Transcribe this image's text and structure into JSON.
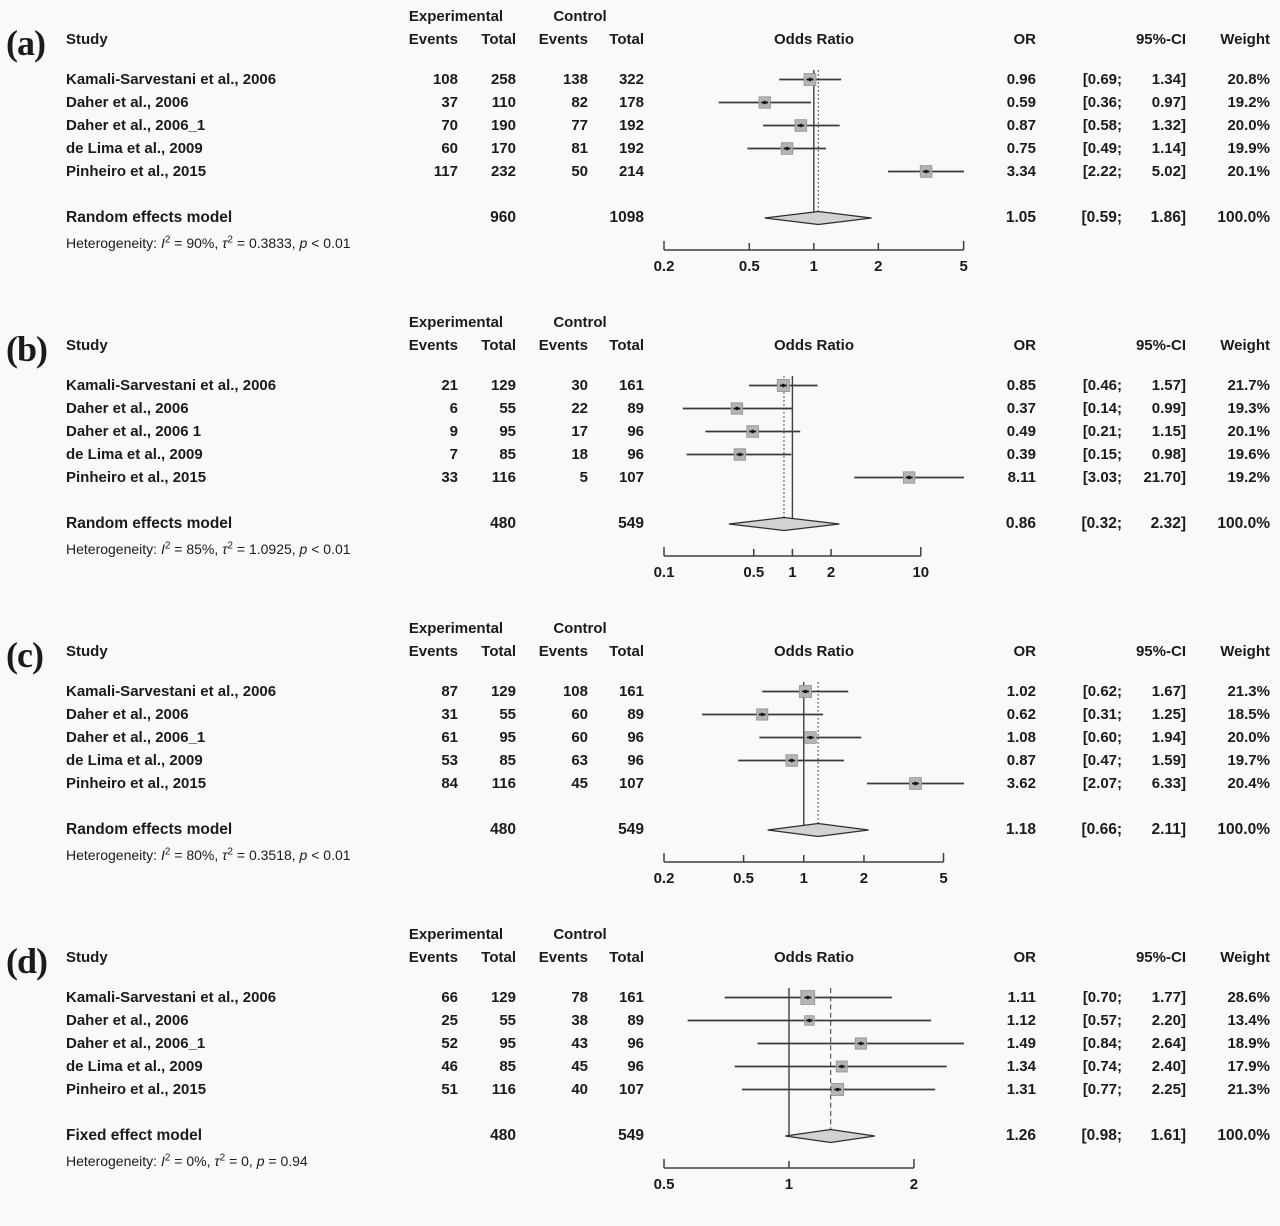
{
  "headers": {
    "study": "Study",
    "experimental": "Experimental",
    "control": "Control",
    "events": "Events",
    "total": "Total",
    "odds_ratio": "Odds Ratio",
    "or": "OR",
    "ci": "95%-CI",
    "weight": "Weight"
  },
  "chart_data": {
    "type": "forest",
    "x_scale": "log",
    "marker_color": "#b4b4b4",
    "line_color": "#3a3a3a",
    "diamond_fill": "#d2d2d2",
    "panels": [
      {
        "label": "(a)",
        "studies": [
          {
            "name": "Kamali-Sarvestani et al., 2006",
            "exp_events": 108,
            "exp_total": 258,
            "ctrl_events": 138,
            "ctrl_total": 322,
            "or": 0.96,
            "ci_low": 0.69,
            "ci_high": 1.34,
            "or_text": "0.96",
            "ci_low_text": "[0.69;",
            "ci_high_text": "1.34]",
            "weight": 20.8,
            "weight_text": "20.8%"
          },
          {
            "name": "Daher et al., 2006",
            "exp_events": 37,
            "exp_total": 110,
            "ctrl_events": 82,
            "ctrl_total": 178,
            "or": 0.59,
            "ci_low": 0.36,
            "ci_high": 0.97,
            "or_text": "0.59",
            "ci_low_text": "[0.36;",
            "ci_high_text": "0.97]",
            "weight": 19.2,
            "weight_text": "19.2%"
          },
          {
            "name": "Daher et al., 2006_1",
            "exp_events": 70,
            "exp_total": 190,
            "ctrl_events": 77,
            "ctrl_total": 192,
            "or": 0.87,
            "ci_low": 0.58,
            "ci_high": 1.32,
            "or_text": "0.87",
            "ci_low_text": "[0.58;",
            "ci_high_text": "1.32]",
            "weight": 20.0,
            "weight_text": "20.0%"
          },
          {
            "name": "de Lima et al., 2009",
            "exp_events": 60,
            "exp_total": 170,
            "ctrl_events": 81,
            "ctrl_total": 192,
            "or": 0.75,
            "ci_low": 0.49,
            "ci_high": 1.14,
            "or_text": "0.75",
            "ci_low_text": "[0.49;",
            "ci_high_text": "1.14]",
            "weight": 19.9,
            "weight_text": "19.9%"
          },
          {
            "name": "Pinheiro et al., 2015",
            "exp_events": 117,
            "exp_total": 232,
            "ctrl_events": 50,
            "ctrl_total": 214,
            "or": 3.34,
            "ci_low": 2.22,
            "ci_high": 5.02,
            "or_text": "3.34",
            "ci_low_text": "[2.22;",
            "ci_high_text": "5.02]",
            "weight": 20.1,
            "weight_text": "20.1%"
          }
        ],
        "summary": {
          "name": "Random effects model",
          "exp_total": 960,
          "ctrl_total": 1098,
          "or": 1.05,
          "ci_low": 0.59,
          "ci_high": 1.86,
          "or_text": "1.05",
          "ci_low_text": "[0.59;",
          "ci_high_text": "1.86]",
          "weight_text": "100.0%"
        },
        "heterogeneity": {
          "label": "Heterogeneity:",
          "i2": "90%",
          "tau2": "0.3833",
          "p": "< 0.01"
        },
        "axis_ticks": [
          0.2,
          0.5,
          1,
          2,
          5
        ],
        "pooled_line": "dotted"
      },
      {
        "label": "(b)",
        "studies": [
          {
            "name": "Kamali-Sarvestani et al., 2006",
            "exp_events": 21,
            "exp_total": 129,
            "ctrl_events": 30,
            "ctrl_total": 161,
            "or": 0.85,
            "ci_low": 0.46,
            "ci_high": 1.57,
            "or_text": "0.85",
            "ci_low_text": "[0.46;",
            "ci_high_text": "1.57]",
            "weight": 21.7,
            "weight_text": "21.7%"
          },
          {
            "name": "Daher et al., 2006",
            "exp_events": 6,
            "exp_total": 55,
            "ctrl_events": 22,
            "ctrl_total": 89,
            "or": 0.37,
            "ci_low": 0.14,
            "ci_high": 0.99,
            "or_text": "0.37",
            "ci_low_text": "[0.14;",
            "ci_high_text": "0.99]",
            "weight": 19.3,
            "weight_text": "19.3%"
          },
          {
            "name": "Daher et al., 2006 1",
            "exp_events": 9,
            "exp_total": 95,
            "ctrl_events": 17,
            "ctrl_total": 96,
            "or": 0.49,
            "ci_low": 0.21,
            "ci_high": 1.15,
            "or_text": "0.49",
            "ci_low_text": "[0.21;",
            "ci_high_text": "1.15]",
            "weight": 20.1,
            "weight_text": "20.1%"
          },
          {
            "name": "de Lima et al., 2009",
            "exp_events": 7,
            "exp_total": 85,
            "ctrl_events": 18,
            "ctrl_total": 96,
            "or": 0.39,
            "ci_low": 0.15,
            "ci_high": 0.98,
            "or_text": "0.39",
            "ci_low_text": "[0.15;",
            "ci_high_text": "0.98]",
            "weight": 19.6,
            "weight_text": "19.6%"
          },
          {
            "name": "Pinheiro et al., 2015",
            "exp_events": 33,
            "exp_total": 116,
            "ctrl_events": 5,
            "ctrl_total": 107,
            "or": 8.11,
            "ci_low": 3.03,
            "ci_high": 21.7,
            "or_text": "8.11",
            "ci_low_text": "[3.03;",
            "ci_high_text": "21.70]",
            "weight": 19.2,
            "weight_text": "19.2%"
          }
        ],
        "summary": {
          "name": "Random effects model",
          "exp_total": 480,
          "ctrl_total": 549,
          "or": 0.86,
          "ci_low": 0.32,
          "ci_high": 2.32,
          "or_text": "0.86",
          "ci_low_text": "[0.32;",
          "ci_high_text": "2.32]",
          "weight_text": "100.0%"
        },
        "heterogeneity": {
          "label": "Heterogeneity:",
          "i2": "85%",
          "tau2": "1.0925",
          "p": "< 0.01"
        },
        "axis_ticks": [
          0.1,
          0.5,
          1,
          2,
          10
        ],
        "pooled_line": "dotted"
      },
      {
        "label": "(c)",
        "studies": [
          {
            "name": "Kamali-Sarvestani et al., 2006",
            "exp_events": 87,
            "exp_total": 129,
            "ctrl_events": 108,
            "ctrl_total": 161,
            "or": 1.02,
            "ci_low": 0.62,
            "ci_high": 1.67,
            "or_text": "1.02",
            "ci_low_text": "[0.62;",
            "ci_high_text": "1.67]",
            "weight": 21.3,
            "weight_text": "21.3%"
          },
          {
            "name": "Daher et al., 2006",
            "exp_events": 31,
            "exp_total": 55,
            "ctrl_events": 60,
            "ctrl_total": 89,
            "or": 0.62,
            "ci_low": 0.31,
            "ci_high": 1.25,
            "or_text": "0.62",
            "ci_low_text": "[0.31;",
            "ci_high_text": "1.25]",
            "weight": 18.5,
            "weight_text": "18.5%"
          },
          {
            "name": "Daher et al., 2006_1",
            "exp_events": 61,
            "exp_total": 95,
            "ctrl_events": 60,
            "ctrl_total": 96,
            "or": 1.08,
            "ci_low": 0.6,
            "ci_high": 1.94,
            "or_text": "1.08",
            "ci_low_text": "[0.60;",
            "ci_high_text": "1.94]",
            "weight": 20.0,
            "weight_text": "20.0%"
          },
          {
            "name": "de Lima et al., 2009",
            "exp_events": 53,
            "exp_total": 85,
            "ctrl_events": 63,
            "ctrl_total": 96,
            "or": 0.87,
            "ci_low": 0.47,
            "ci_high": 1.59,
            "or_text": "0.87",
            "ci_low_text": "[0.47;",
            "ci_high_text": "1.59]",
            "weight": 19.7,
            "weight_text": "19.7%"
          },
          {
            "name": "Pinheiro et al., 2015",
            "exp_events": 84,
            "exp_total": 116,
            "ctrl_events": 45,
            "ctrl_total": 107,
            "or": 3.62,
            "ci_low": 2.07,
            "ci_high": 6.33,
            "or_text": "3.62",
            "ci_low_text": "[2.07;",
            "ci_high_text": "6.33]",
            "weight": 20.4,
            "weight_text": "20.4%"
          }
        ],
        "summary": {
          "name": "Random effects model",
          "exp_total": 480,
          "ctrl_total": 549,
          "or": 1.18,
          "ci_low": 0.66,
          "ci_high": 2.11,
          "or_text": "1.18",
          "ci_low_text": "[0.66;",
          "ci_high_text": "2.11]",
          "weight_text": "100.0%"
        },
        "heterogeneity": {
          "label": "Heterogeneity:",
          "i2": "80%",
          "tau2": "0.3518",
          "p": "< 0.01"
        },
        "axis_ticks": [
          0.2,
          0.5,
          1,
          2,
          5
        ],
        "pooled_line": "dotted"
      },
      {
        "label": "(d)",
        "studies": [
          {
            "name": "Kamali-Sarvestani et al., 2006",
            "exp_events": 66,
            "exp_total": 129,
            "ctrl_events": 78,
            "ctrl_total": 161,
            "or": 1.11,
            "ci_low": 0.7,
            "ci_high": 1.77,
            "or_text": "1.11",
            "ci_low_text": "[0.70;",
            "ci_high_text": "1.77]",
            "weight": 28.6,
            "weight_text": "28.6%"
          },
          {
            "name": "Daher et al., 2006",
            "exp_events": 25,
            "exp_total": 55,
            "ctrl_events": 38,
            "ctrl_total": 89,
            "or": 1.12,
            "ci_low": 0.57,
            "ci_high": 2.2,
            "or_text": "1.12",
            "ci_low_text": "[0.57;",
            "ci_high_text": "2.20]",
            "weight": 13.4,
            "weight_text": "13.4%"
          },
          {
            "name": "Daher et al., 2006_1",
            "exp_events": 52,
            "exp_total": 95,
            "ctrl_events": 43,
            "ctrl_total": 96,
            "or": 1.49,
            "ci_low": 0.84,
            "ci_high": 2.64,
            "or_text": "1.49",
            "ci_low_text": "[0.84;",
            "ci_high_text": "2.64]",
            "weight": 18.9,
            "weight_text": "18.9%"
          },
          {
            "name": "de Lima et al., 2009",
            "exp_events": 46,
            "exp_total": 85,
            "ctrl_events": 45,
            "ctrl_total": 96,
            "or": 1.34,
            "ci_low": 0.74,
            "ci_high": 2.4,
            "or_text": "1.34",
            "ci_low_text": "[0.74;",
            "ci_high_text": "2.40]",
            "weight": 17.9,
            "weight_text": "17.9%"
          },
          {
            "name": "Pinheiro et al., 2015",
            "exp_events": 51,
            "exp_total": 116,
            "ctrl_events": 40,
            "ctrl_total": 107,
            "or": 1.31,
            "ci_low": 0.77,
            "ci_high": 2.25,
            "or_text": "1.31",
            "ci_low_text": "[0.77;",
            "ci_high_text": "2.25]",
            "weight": 21.3,
            "weight_text": "21.3%"
          }
        ],
        "summary": {
          "name": "Fixed effect model",
          "exp_total": 480,
          "ctrl_total": 549,
          "or": 1.26,
          "ci_low": 0.98,
          "ci_high": 1.61,
          "or_text": "1.26",
          "ci_low_text": "[0.98;",
          "ci_high_text": "1.61]",
          "weight_text": "100.0%"
        },
        "heterogeneity": {
          "label": "Heterogeneity:",
          "i2": "0%",
          "tau2": "0",
          "p": "= 0.94"
        },
        "axis_ticks": [
          0.5,
          1,
          2
        ],
        "pooled_line": "dashed"
      }
    ]
  }
}
